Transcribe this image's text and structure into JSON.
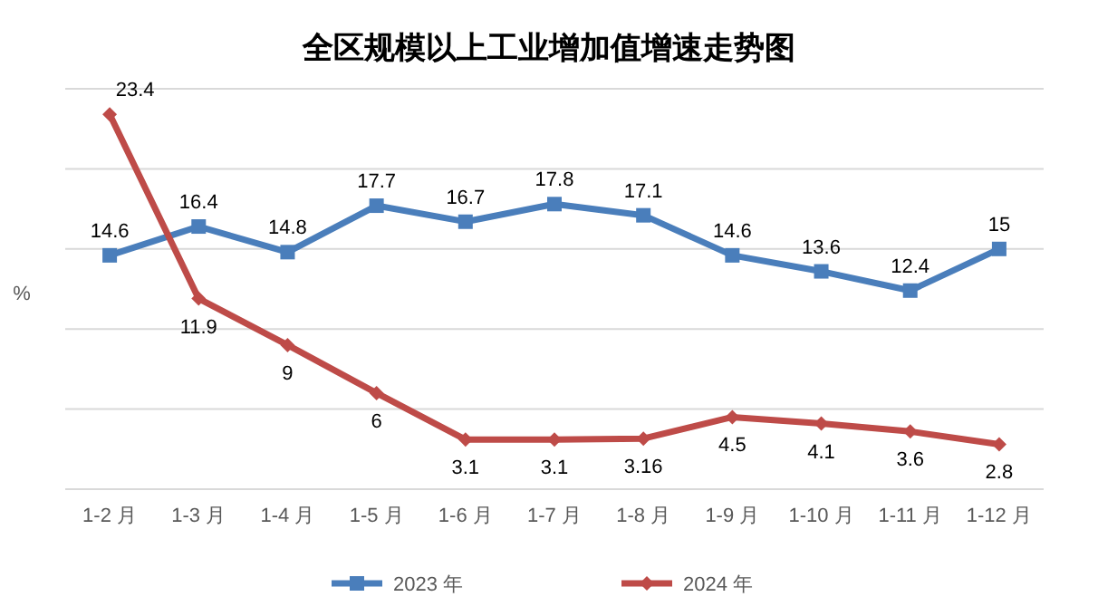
{
  "chart_data": {
    "type": "line",
    "title": "全区规模以上工业增加值增速走势图",
    "ylabel": "%",
    "categories": [
      "1-2 月",
      "1-3 月",
      "1-4 月",
      "1-5 月",
      "1-6 月",
      "1-7 月",
      "1-8 月",
      "1-9 月",
      "1-10 月",
      "1-11 月",
      "1-12 月"
    ],
    "series": [
      {
        "name": "2023 年",
        "color": "#4a7ebb",
        "marker": "square",
        "values": [
          14.6,
          16.4,
          14.8,
          17.7,
          16.7,
          17.8,
          17.1,
          14.6,
          13.6,
          12.4,
          15
        ]
      },
      {
        "name": "2024 年",
        "color": "#be4b48",
        "marker": "diamond",
        "values": [
          23.4,
          11.9,
          9,
          6,
          3.1,
          3.1,
          3.16,
          4.5,
          4.1,
          3.6,
          2.8
        ]
      }
    ],
    "ylim": [
      0,
      25
    ],
    "yticks": [
      {
        "value": 0,
        "label": null
      },
      {
        "value": 5,
        "label": null
      },
      {
        "value": 10,
        "label": null
      },
      {
        "value": 15,
        "label": null
      },
      {
        "value": 20,
        "label": null
      },
      {
        "value": 25,
        "label": null
      }
    ],
    "tick_labels": "x",
    "grid": "y",
    "data_labels": true,
    "legend": "bottom"
  }
}
